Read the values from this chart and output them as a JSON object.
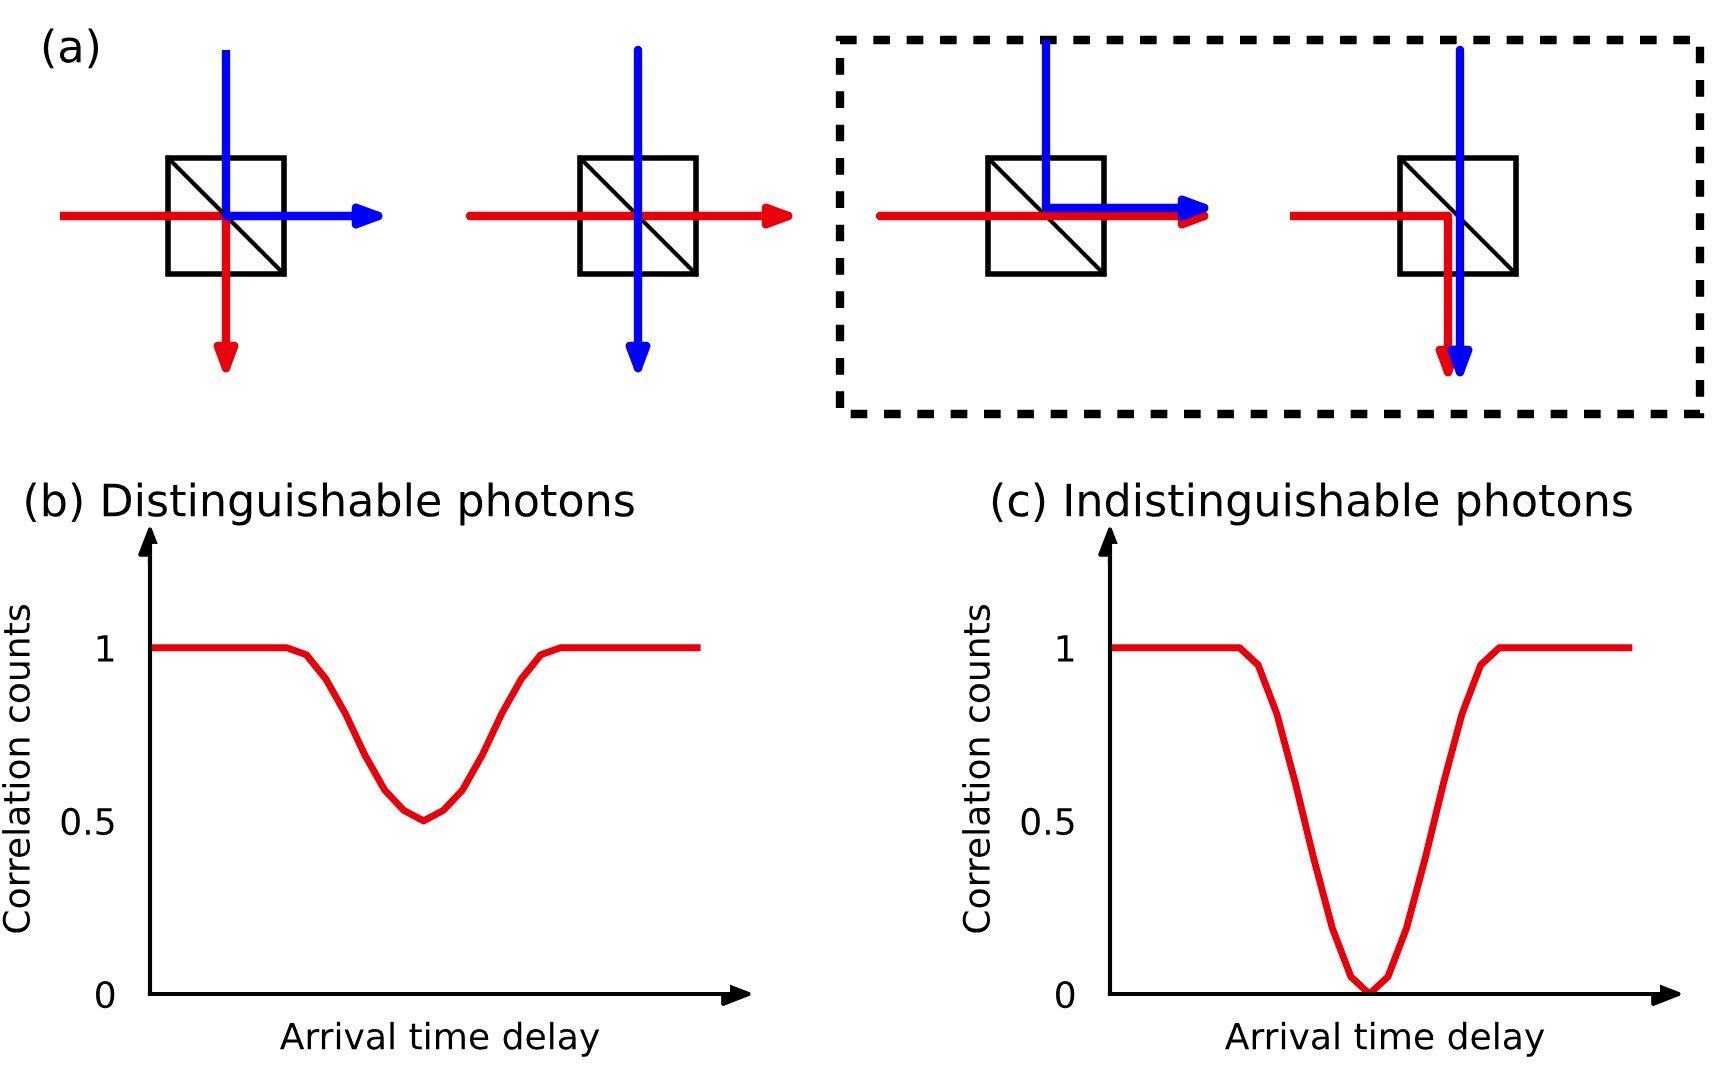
{
  "chart_data": [
    {
      "type": "line",
      "title": "(b) Distinguishable photons",
      "xlabel": "Arrival time delay",
      "ylabel": "Correlation counts",
      "annotations": [
        "(a)"
      ],
      "categories": [
        null,
        null,
        null,
        null,
        null,
        null,
        null,
        null,
        null,
        null,
        null,
        null,
        null,
        null,
        null,
        null,
        null,
        null,
        null,
        null,
        null,
        null,
        null,
        null,
        null,
        null,
        null,
        null,
        null
      ],
      "series": [
        {
          "color": "#e8000b",
          "values": [
            1,
            1,
            1,
            1,
            1,
            1,
            1,
            1,
            0.98,
            0.91,
            0.81,
            0.69,
            0.59,
            0.53,
            0.5,
            0.53,
            0.59,
            0.69,
            0.81,
            0.91,
            0.98,
            1,
            1,
            1,
            1,
            1,
            1,
            1,
            1
          ]
        }
      ],
      "ylim": [
        0,
        1.3
      ],
      "yticks": [
        0,
        0.5,
        1
      ],
      "grid": false,
      "tick_labels": "y",
      "marker": "none",
      "line_style": "solid"
    },
    {
      "type": "line",
      "title": "(c) Indistinguishable photons",
      "xlabel": "Arrival time delay",
      "ylabel": "Correlation counts",
      "categories": [
        null,
        null,
        null,
        null,
        null,
        null,
        null,
        null,
        null,
        null,
        null,
        null,
        null,
        null,
        null,
        null,
        null,
        null,
        null,
        null,
        null,
        null,
        null,
        null,
        null,
        null,
        null,
        null,
        null
      ],
      "series": [
        {
          "color": "#e8000b",
          "values": [
            1,
            1,
            1,
            1,
            1,
            1,
            1,
            1,
            0.95,
            0.81,
            0.61,
            0.39,
            0.19,
            0.05,
            0,
            0.05,
            0.19,
            0.39,
            0.61,
            0.81,
            0.95,
            1,
            1,
            1,
            1,
            1,
            1,
            1,
            1
          ]
        }
      ],
      "ylim": [
        0,
        1.3
      ],
      "yticks": [
        0,
        0.5,
        1
      ],
      "grid": false,
      "tick_labels": "y",
      "marker": "none",
      "line_style": "solid"
    }
  ]
}
